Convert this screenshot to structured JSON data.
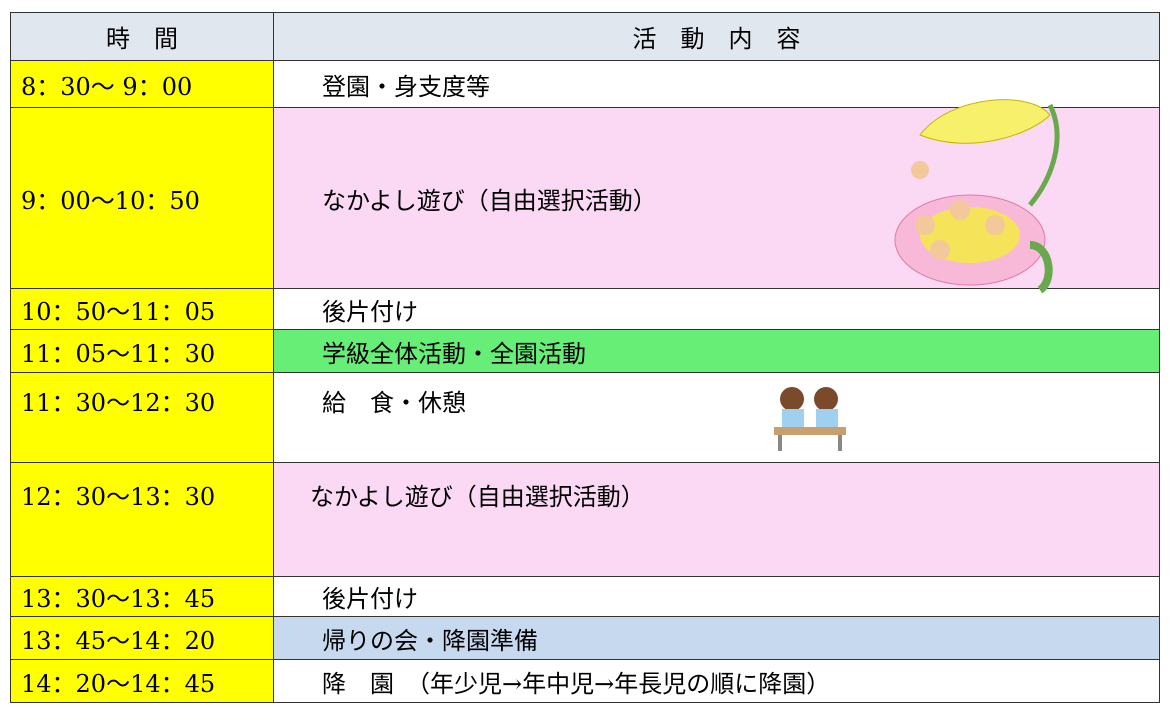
{
  "table": {
    "header": [
      "時　間",
      "活　動　内　容"
    ],
    "rows": [
      [
        "8：30～ 9：00",
        "登園・身支度等"
      ],
      [
        "9：00～10：50",
        "なかよし遊び（自由選択活動）"
      ],
      [
        "10：50～11：05",
        "後片付け"
      ],
      [
        "11：05～11：30",
        "学級全体活動・全園活動"
      ],
      [
        "11：30～12：30",
        "給　食・休憩"
      ],
      [
        "12：30～13：30",
        "なかよし遊び（自由選択活動）"
      ],
      [
        "13：30～13：45",
        "後片付け"
      ],
      [
        "13：45～14：20",
        "帰りの会・降園準備"
      ],
      [
        "14：20～14：45",
        "降　園　（年少児→年中児→年長児の順に降園）"
      ]
    ]
  }
}
